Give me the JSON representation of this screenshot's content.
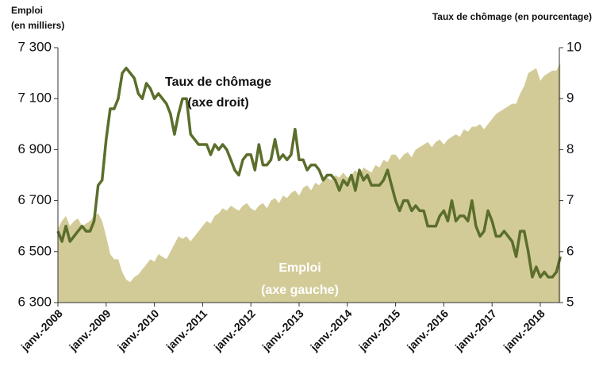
{
  "chart_data": {
    "type": "area-line",
    "ylabel": [
      "Emploi",
      "(en milliers)"
    ],
    "y2label": "Taux de chômage (en pourcentage)",
    "annotations": [
      [
        "Taux de chômage",
        "(axe droit)"
      ],
      [
        "Emploi",
        "(axe gauche)"
      ]
    ],
    "categories": [
      "janv.-2008",
      null,
      null,
      null,
      null,
      null,
      null,
      null,
      null,
      null,
      null,
      null,
      "janv.-2009",
      null,
      null,
      null,
      null,
      null,
      null,
      null,
      null,
      null,
      null,
      null,
      "janv.-2010",
      null,
      null,
      null,
      null,
      null,
      null,
      null,
      null,
      null,
      null,
      null,
      "janv.-2011",
      null,
      null,
      null,
      null,
      null,
      null,
      null,
      null,
      null,
      null,
      null,
      "janv.-2012",
      null,
      null,
      null,
      null,
      null,
      null,
      null,
      null,
      null,
      null,
      null,
      "janv.-2013",
      null,
      null,
      null,
      null,
      null,
      null,
      null,
      null,
      null,
      null,
      null,
      "janv.-2014",
      null,
      null,
      null,
      null,
      null,
      null,
      null,
      null,
      null,
      null,
      null,
      "janv.-2015",
      null,
      null,
      null,
      null,
      null,
      null,
      null,
      null,
      null,
      null,
      null,
      "janv.-2016",
      null,
      null,
      null,
      null,
      null,
      null,
      null,
      null,
      null,
      null,
      null,
      "janv.-2017",
      null,
      null,
      null,
      null,
      null,
      null,
      null,
      null,
      null,
      null,
      null,
      "janv.-2018",
      null,
      null,
      null,
      null,
      null
    ],
    "series": [
      {
        "name": "Emploi",
        "kind": "area",
        "color": "#d2cb98",
        "values": [
          6590,
          6620,
          6640,
          6600,
          6620,
          6630,
          6600,
          6610,
          6620,
          6640,
          6650,
          6620,
          6560,
          6490,
          6470,
          6470,
          6420,
          6390,
          6380,
          6400,
          6410,
          6430,
          6450,
          6470,
          6460,
          6490,
          6480,
          6470,
          6500,
          6530,
          6560,
          6550,
          6560,
          6540,
          6560,
          6580,
          6600,
          6620,
          6610,
          6640,
          6650,
          6670,
          6660,
          6680,
          6670,
          6660,
          6680,
          6690,
          6670,
          6660,
          6680,
          6690,
          6670,
          6700,
          6710,
          6690,
          6720,
          6710,
          6730,
          6740,
          6720,
          6750,
          6760,
          6740,
          6770,
          6760,
          6780,
          6790,
          6780,
          6800,
          6790,
          6810,
          6790,
          6800,
          6820,
          6800,
          6830,
          6820,
          6810,
          6840,
          6830,
          6860,
          6850,
          6880,
          6880,
          6860,
          6880,
          6890,
          6870,
          6900,
          6910,
          6920,
          6930,
          6910,
          6930,
          6940,
          6920,
          6940,
          6950,
          6960,
          6950,
          6980,
          6970,
          6990,
          6990,
          7000,
          6980,
          7000,
          7020,
          7040,
          7050,
          7060,
          7070,
          7080,
          7080,
          7120,
          7150,
          7200,
          7210,
          7220,
          7170,
          7190,
          7200,
          7210,
          7210,
          7240
        ]
      },
      {
        "name": "Taux de chômage",
        "kind": "line",
        "axis": "y2",
        "color": "#5b6e2b",
        "values": [
          6.4,
          6.2,
          6.5,
          6.2,
          6.3,
          6.4,
          6.5,
          6.4,
          6.4,
          6.6,
          7.3,
          7.4,
          8.2,
          8.8,
          8.8,
          9.0,
          9.5,
          9.6,
          9.5,
          9.4,
          9.1,
          9.0,
          9.3,
          9.2,
          9.0,
          9.1,
          9.0,
          8.9,
          8.7,
          8.3,
          8.7,
          9.0,
          9.0,
          8.3,
          8.2,
          8.1,
          8.1,
          8.1,
          7.9,
          8.1,
          8.0,
          8.1,
          8.0,
          7.8,
          7.6,
          7.5,
          7.8,
          7.9,
          7.9,
          7.6,
          8.1,
          7.7,
          7.7,
          7.8,
          8.2,
          7.8,
          7.9,
          7.8,
          7.9,
          8.4,
          7.8,
          7.8,
          7.6,
          7.7,
          7.7,
          7.6,
          7.4,
          7.5,
          7.5,
          7.4,
          7.2,
          7.4,
          7.3,
          7.5,
          7.2,
          7.6,
          7.4,
          7.5,
          7.3,
          7.3,
          7.3,
          7.4,
          7.6,
          7.3,
          7.0,
          6.8,
          7.0,
          7.0,
          6.8,
          6.9,
          6.8,
          6.8,
          6.5,
          6.5,
          6.5,
          6.7,
          6.8,
          6.6,
          7.0,
          6.6,
          6.7,
          6.7,
          6.6,
          7.0,
          6.5,
          6.3,
          6.4,
          6.8,
          6.6,
          6.3,
          6.3,
          6.4,
          6.3,
          6.2,
          5.9,
          6.4,
          6.4,
          6.0,
          5.5,
          5.7,
          5.5,
          5.6,
          5.5,
          5.5,
          5.6,
          5.9
        ]
      }
    ],
    "ylim": [
      6300,
      7300
    ],
    "yticks": [
      {
        "value": 6300,
        "label": "6 300"
      },
      {
        "value": 6500,
        "label": "6 500"
      },
      {
        "value": 6700,
        "label": "6 700"
      },
      {
        "value": 6900,
        "label": "6 900"
      },
      {
        "value": 7100,
        "label": "7 100"
      },
      {
        "value": 7300,
        "label": "7 300"
      }
    ],
    "y2lim": [
      5,
      10
    ],
    "y2ticks": [
      5,
      6,
      7,
      8,
      9,
      10
    ],
    "grid": false
  }
}
